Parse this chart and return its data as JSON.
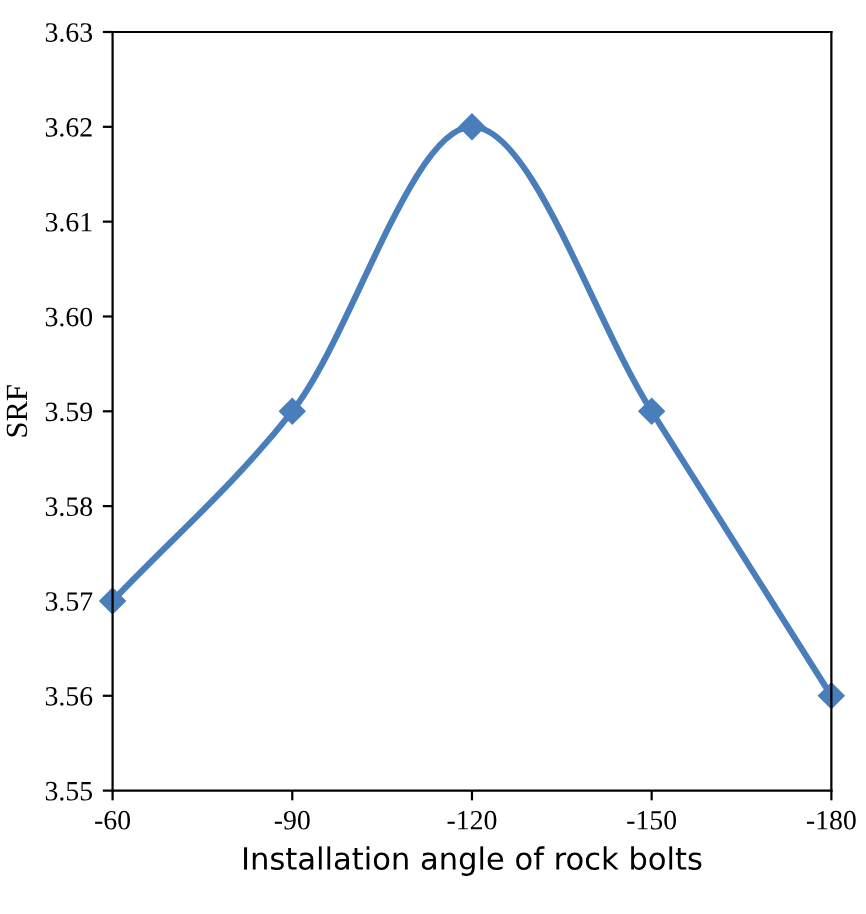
{
  "chart_data": {
    "type": "line",
    "xlabel": "Installation angle of rock bolts",
    "ylabel": "SRF",
    "categories": [
      "-60",
      "-90",
      "-120",
      "-150",
      "-180"
    ],
    "series": [
      {
        "color": "#4a7ebb",
        "values": [
          3.57,
          3.59,
          3.62,
          3.59,
          3.56
        ]
      }
    ],
    "ylim": [
      3.55,
      3.63
    ],
    "yticks": [
      3.55,
      3.56,
      3.57,
      3.58,
      3.59,
      {
        "value": 3.6,
        "label": "3.60"
      },
      3.61,
      3.62,
      3.63
    ],
    "grid": false,
    "legend": false,
    "marker": "diamond",
    "line_style": "solid"
  }
}
